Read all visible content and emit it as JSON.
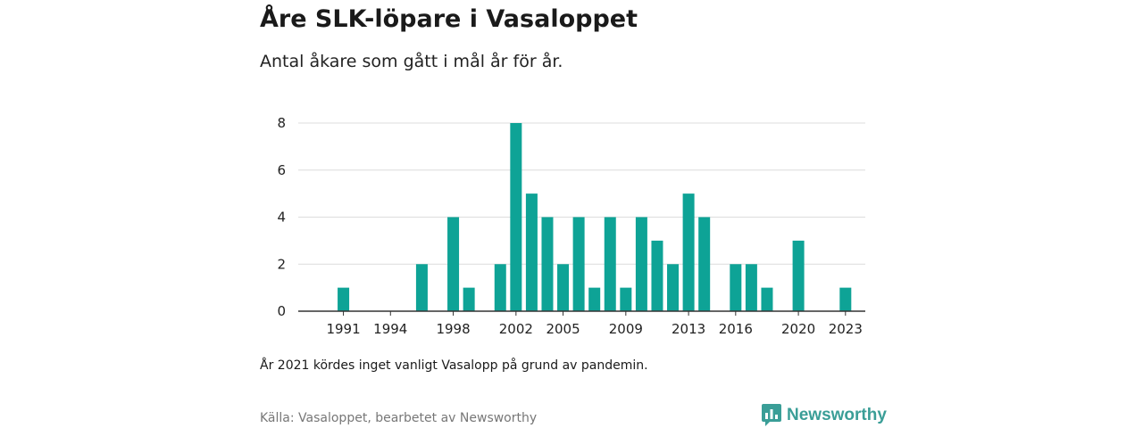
{
  "title": "Åre SLK-löpare i Vasaloppet",
  "subtitle": "Antal åkare som gått i mål år för år.",
  "note": "År 2021 kördes inget vanligt Vasalopp på grund av pandemin.",
  "source": "Källa: Vasaloppet, bearbetet av Newsworthy",
  "brand": {
    "name": "Newsworthy",
    "color": "#3a9e97",
    "icon": "newsworthy-logo-icon"
  },
  "colors": {
    "bar": "#0ea396",
    "grid": "#dcdcdc",
    "axis": "#333333"
  },
  "chart_data": {
    "type": "bar",
    "x": [
      1990,
      1991,
      1992,
      1993,
      1994,
      1995,
      1996,
      1997,
      1998,
      1999,
      2000,
      2001,
      2002,
      2003,
      2004,
      2005,
      2006,
      2007,
      2008,
      2009,
      2010,
      2011,
      2012,
      2013,
      2014,
      2015,
      2016,
      2017,
      2018,
      2019,
      2020,
      2021,
      2022,
      2023
    ],
    "values": [
      0,
      1,
      0,
      0,
      0,
      0,
      2,
      0,
      4,
      1,
      0,
      2,
      8,
      5,
      4,
      2,
      4,
      1,
      4,
      1,
      4,
      3,
      2,
      5,
      4,
      0,
      2,
      2,
      1,
      0,
      3,
      0,
      0,
      1
    ],
    "x_tick_labels": [
      "1991",
      "1994",
      "1998",
      "2002",
      "2005",
      "2009",
      "2013",
      "2016",
      "2020",
      "2023"
    ],
    "y_ticks": [
      0,
      2,
      4,
      6,
      8
    ],
    "ylim": [
      0,
      8
    ],
    "grid": true,
    "legend": "none"
  }
}
